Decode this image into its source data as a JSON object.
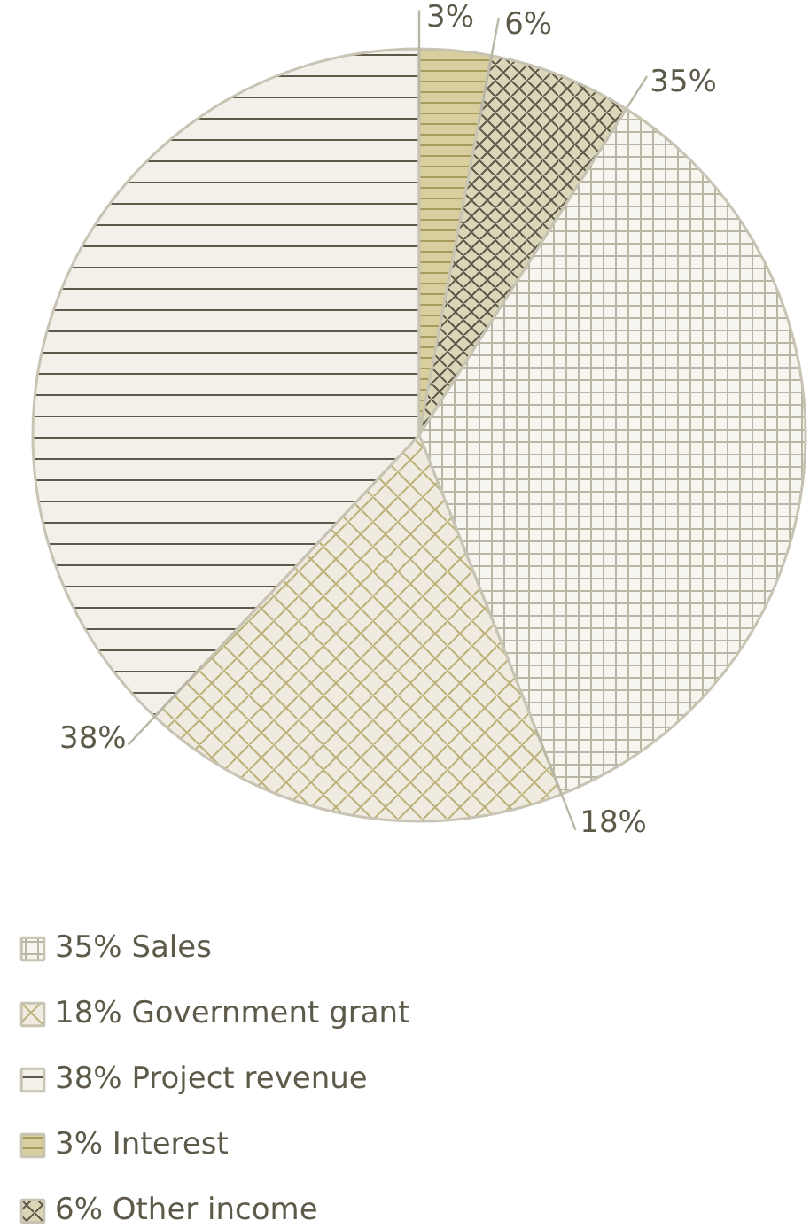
{
  "chart_data": {
    "type": "pie",
    "categories": [
      "Sales",
      "Government grant",
      "Project revenue",
      "Interest",
      "Other income"
    ],
    "values": [
      35,
      18,
      38,
      3,
      6
    ],
    "value_labels": [
      "35%",
      "18%",
      "38%",
      "3%",
      "6%"
    ],
    "colors": [
      "#f6f5ef",
      "#efebe0",
      "#f3f0ea",
      "#d9cf9e",
      "#dcd6b8"
    ],
    "legend": "bottom"
  }
}
